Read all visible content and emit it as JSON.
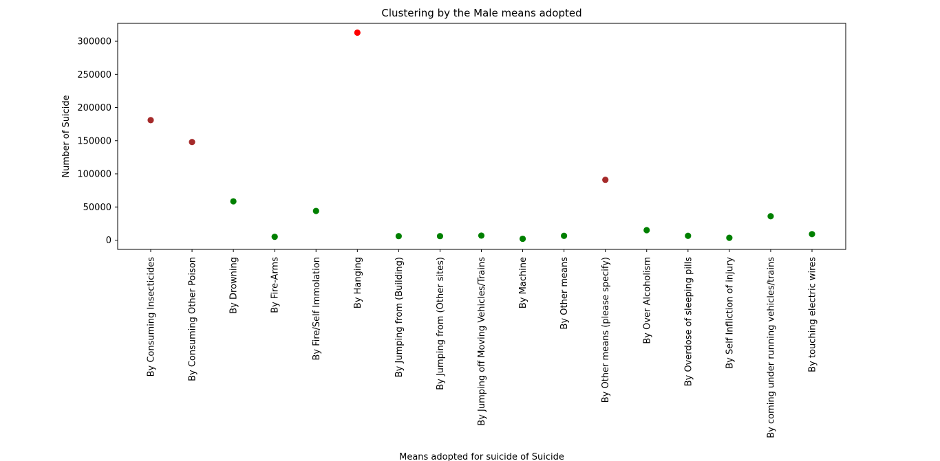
{
  "chart_data": {
    "type": "scatter",
    "title": "Clustering by the Male means adopted",
    "xlabel": "Means adopted for suicide of Suicide",
    "ylabel": "Number of Suicide",
    "ylim": [
      -14000,
      327000
    ],
    "yticks": [
      0,
      50000,
      100000,
      150000,
      200000,
      250000,
      300000
    ],
    "ytick_labels": [
      "0",
      "50000",
      "100000",
      "150000",
      "200000",
      "250000",
      "300000"
    ],
    "grid": false,
    "legend": "none",
    "cluster_colors": {
      "high": "#ff0000",
      "medium": "#a52a2a",
      "low": "#008000"
    },
    "categories": [
      "By Consuming Insecticides",
      "By Consuming Other Poison",
      "By Drowning",
      "By Fire-Arms",
      "By Fire/Self Immolation",
      "By Hanging",
      "By Jumping from (Building)",
      "By Jumping from (Other sites)",
      "By Jumping off Moving Vehicles/Trains",
      "By Machine",
      "By Other means",
      "By Other means (please specify)",
      "By Over Alcoholism",
      "By Overdose of sleeping pills",
      "By Self Infliction of injury",
      "By coming under running vehicles/trains",
      "By touching electric wires"
    ],
    "values": [
      181000,
      148000,
      58500,
      5000,
      44000,
      313000,
      6000,
      6000,
      6800,
      2000,
      6500,
      91000,
      15000,
      6500,
      3500,
      36000,
      9000
    ],
    "clusters": [
      "medium",
      "medium",
      "low",
      "low",
      "low",
      "high",
      "low",
      "low",
      "low",
      "low",
      "low",
      "medium",
      "low",
      "low",
      "low",
      "low",
      "low"
    ]
  }
}
